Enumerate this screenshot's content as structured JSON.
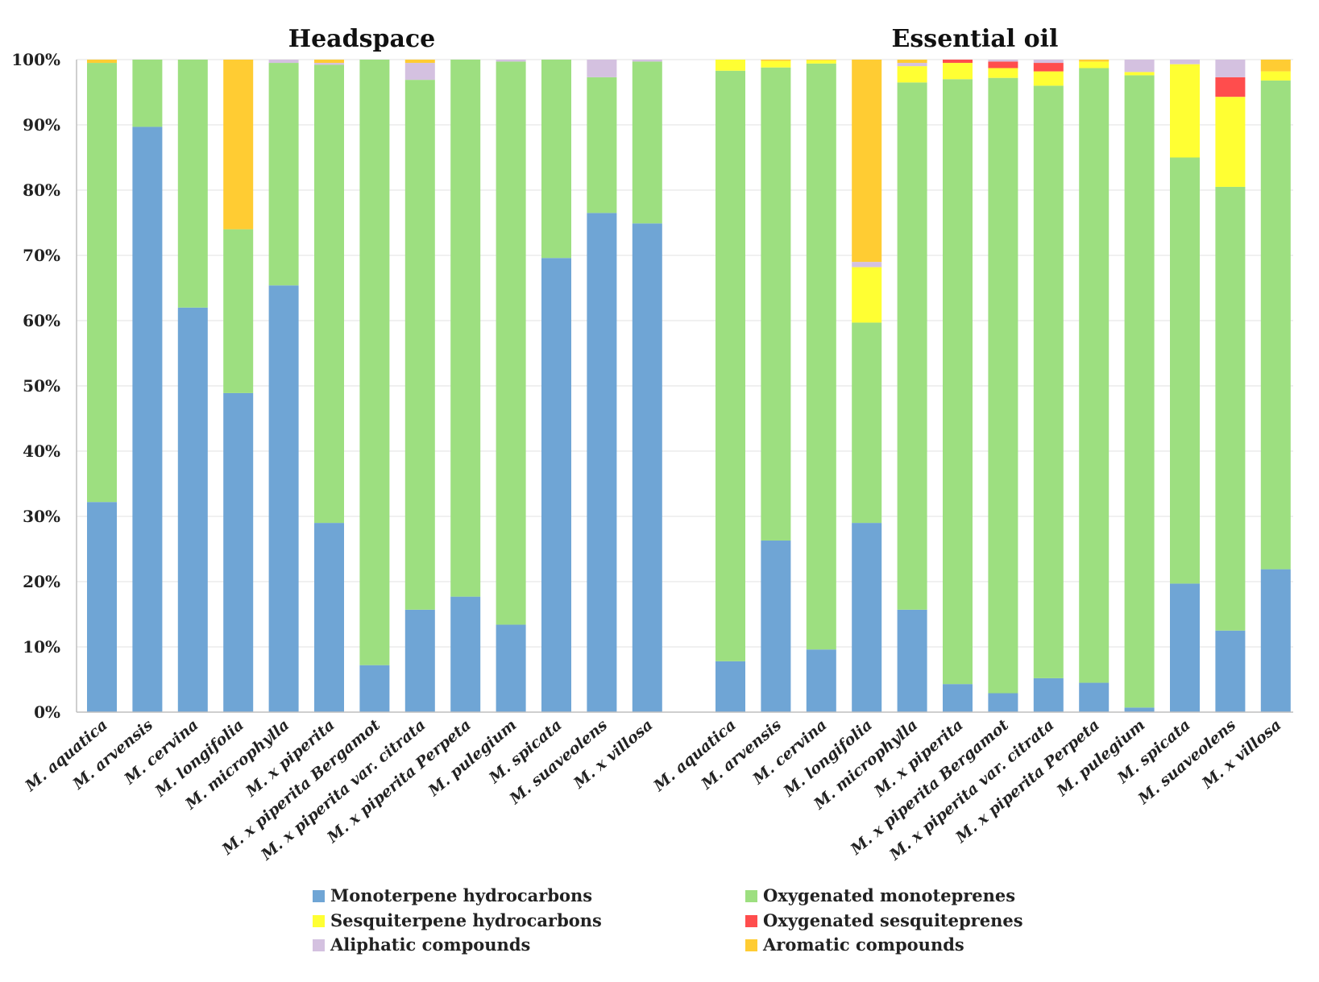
{
  "chart_data": {
    "type": "bar",
    "stacked": true,
    "normalized": true,
    "ylim": [
      0,
      100
    ],
    "yticks": [
      "0%",
      "10%",
      "20%",
      "30%",
      "40%",
      "50%",
      "60%",
      "70%",
      "80%",
      "90%",
      "100%"
    ],
    "legend_position": "bottom",
    "groups": [
      {
        "title": "Headspace",
        "categories": [
          "M. aquatica",
          "M. arvensis",
          "M. cervina",
          "M. longifolia",
          "M. microphylla",
          "M. x piperita",
          "M. x piperita Bergamot",
          "M. x piperita var. citrata",
          "M. x piperita Perpeta",
          "M. pulegium",
          "M. spicata",
          "M. suaveolens",
          "M. x villosa"
        ],
        "series": [
          {
            "name": "Monoterpene hydrocarbons",
            "values": [
              32.2,
              89.7,
              62.0,
              48.9,
              65.4,
              29.0,
              7.2,
              15.7,
              17.7,
              13.4,
              69.6,
              76.5,
              74.9
            ]
          },
          {
            "name": "Oxygenated monoteprenes",
            "values": [
              67.3,
              10.3,
              38.0,
              25.1,
              34.1,
              70.2,
              92.8,
              81.2,
              82.3,
              86.3,
              30.4,
              20.8,
              24.8
            ]
          },
          {
            "name": "Sesquiterpene hydrocarbons",
            "values": [
              0,
              0,
              0,
              0,
              0,
              0,
              0,
              0,
              0,
              0,
              0,
              0,
              0
            ]
          },
          {
            "name": "Oxygenated sesquiteprenes",
            "values": [
              0,
              0,
              0,
              0,
              0,
              0,
              0,
              0,
              0,
              0,
              0,
              0,
              0
            ]
          },
          {
            "name": "Aliphatic compounds",
            "values": [
              0,
              0,
              0,
              0,
              0.5,
              0.3,
              0,
              2.6,
              0,
              0.3,
              0,
              2.7,
              0.3
            ]
          },
          {
            "name": "Aromatic compounds",
            "values": [
              0.5,
              0,
              0,
              26.0,
              0,
              0.5,
              0,
              0.5,
              0,
              0,
              0,
              0,
              0
            ]
          }
        ]
      },
      {
        "title": "Essential oil",
        "categories": [
          "M. aquatica",
          "M. arvensis",
          "M. cervina",
          "M. longifolia",
          "M. microphylla",
          "M. x piperita",
          "M. x piperita Bergamot",
          "M. x piperita var. citrata",
          "M. x piperita Perpeta",
          "M. pulegium",
          "M. spicata",
          "M. suaveolens",
          "M. x villosa"
        ],
        "series": [
          {
            "name": "Monoterpene hydrocarbons",
            "values": [
              7.8,
              26.3,
              9.6,
              29.0,
              15.7,
              4.3,
              2.9,
              5.2,
              4.5,
              0.7,
              19.7,
              12.5,
              21.9
            ]
          },
          {
            "name": "Oxygenated monoteprenes",
            "values": [
              90.5,
              72.5,
              89.8,
              30.7,
              80.8,
              92.7,
              94.3,
              90.8,
              94.2,
              96.9,
              65.3,
              68.0,
              74.9
            ]
          },
          {
            "name": "Sesquiterpene hydrocarbons",
            "values": [
              1.7,
              1.0,
              0.5,
              8.5,
              2.5,
              2.5,
              1.5,
              2.2,
              1.0,
              0.5,
              14.3,
              13.8,
              1.4
            ]
          },
          {
            "name": "Oxygenated sesquiteprenes",
            "values": [
              0,
              0,
              0,
              0,
              0,
              0.5,
              1.0,
              1.3,
              0,
              0,
              0,
              3.0,
              0
            ]
          },
          {
            "name": "Aliphatic compounds",
            "values": [
              0,
              0,
              0,
              0.8,
              0.5,
              0,
              0.3,
              0.5,
              0,
              1.9,
              0.7,
              2.7,
              0
            ]
          },
          {
            "name": "Aromatic compounds",
            "values": [
              0,
              0.2,
              0.1,
              31.0,
              0.5,
              0,
              0,
              0,
              0.3,
              0,
              0,
              0,
              1.8
            ]
          }
        ]
      }
    ],
    "colors": {
      "Monoterpene hydrocarbons": "#6fa5d5",
      "Oxygenated monoteprenes": "#9ddf80",
      "Sesquiterpene hydrocarbons": "#ffff33",
      "Oxygenated sesquiteprenes": "#ff4d4d",
      "Aliphatic compounds": "#d4c1e0",
      "Aromatic compounds": "#ffcc33"
    },
    "legend": [
      "Monoterpene hydrocarbons",
      "Oxygenated monoteprenes",
      "Sesquiterpene hydrocarbons",
      "Oxygenated sesquiteprenes",
      "Aliphatic compounds",
      "Aromatic compounds"
    ]
  }
}
